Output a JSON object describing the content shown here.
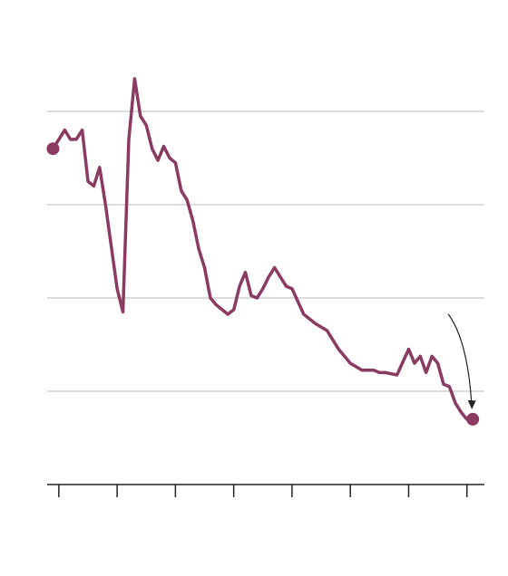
{
  "chart_data": {
    "type": "line",
    "title": "",
    "xlabel": "",
    "ylabel": "",
    "grid": true,
    "xlim": [
      1958,
      2033
    ],
    "ylim": [
      0,
      100
    ],
    "yticks": [
      20,
      40,
      60,
      80
    ],
    "xticks": [
      1960,
      1970,
      1980,
      1990,
      2000,
      2010,
      2020,
      2030
    ],
    "series": [
      {
        "color": "#8b3a62",
        "x": [
          1959,
          1960,
          1961,
          1962,
          1963,
          1964,
          1965,
          1966,
          1967,
          1968,
          1969,
          1970,
          1971,
          1972,
          1973,
          1974,
          1975,
          1976,
          1977,
          1978,
          1979,
          1980,
          1981,
          1982,
          1983,
          1984,
          1985,
          1986,
          1987,
          1988,
          1989,
          1990,
          1991,
          1992,
          1993,
          1994,
          1995,
          1996,
          1997,
          1998,
          1999,
          2000,
          2002,
          2004,
          2006,
          2008,
          2010,
          2012,
          2014,
          2015,
          2016,
          2018,
          2020,
          2021,
          2022,
          2023,
          2024,
          2025,
          2026,
          2027,
          2028,
          2029,
          2030,
          2031
        ],
        "y": [
          72,
          74,
          76,
          74,
          74,
          76,
          65,
          64,
          68,
          60,
          51,
          42,
          37,
          74,
          87,
          79,
          77,
          72,
          69.5,
          72.5,
          70,
          69,
          63,
          61,
          56.5,
          50.5,
          46.5,
          40,
          38.5,
          37.5,
          36.5,
          37.5,
          42.5,
          45.5,
          40.5,
          40,
          42,
          44.5,
          46.5,
          44.5,
          42.5,
          42,
          36.5,
          34.5,
          33,
          29,
          26,
          24.5,
          24.5,
          24,
          24,
          23.5,
          29,
          26,
          27.5,
          24,
          27.5,
          26,
          21.5,
          21,
          17.5,
          15.5,
          14,
          14
        ]
      }
    ],
    "annotations": [
      {
        "type": "arrow",
        "points_to": "last-point"
      }
    ]
  }
}
